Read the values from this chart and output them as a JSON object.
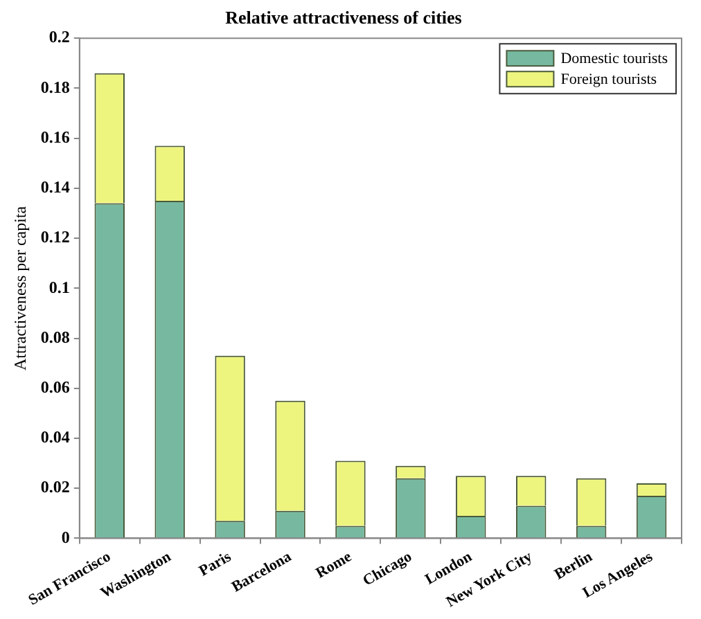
{
  "chart_data": {
    "type": "bar",
    "stacked": true,
    "title": "Relative attractiveness of cities",
    "ylabel": "Attractiveness per capita",
    "categories": [
      "San Francisco",
      "Washington",
      "Paris",
      "Barcelona",
      "Rome",
      "Chicago",
      "London",
      "New York City",
      "Berlin",
      "Los Angeles"
    ],
    "series": [
      {
        "name": "Domestic tourists",
        "color": "#76b9a0",
        "values": [
          0.134,
          0.135,
          0.007,
          0.011,
          0.005,
          0.024,
          0.009,
          0.013,
          0.005,
          0.017
        ]
      },
      {
        "name": "Foreign tourists",
        "color": "#eef57f",
        "values": [
          0.052,
          0.022,
          0.066,
          0.044,
          0.026,
          0.005,
          0.016,
          0.012,
          0.019,
          0.005
        ]
      }
    ],
    "ylim": [
      0,
      0.2
    ],
    "yticks": [
      0,
      0.02,
      0.04,
      0.06,
      0.08,
      0.1,
      0.12,
      0.14,
      0.16,
      0.18,
      0.2
    ],
    "grid": false,
    "legend": "top right"
  }
}
